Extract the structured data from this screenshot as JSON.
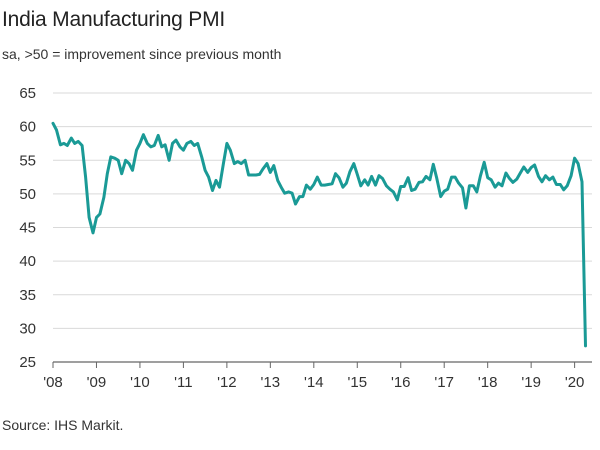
{
  "title": "India Manufacturing PMI",
  "subtitle": "sa, >50 = improvement since previous month",
  "source": "Source: IHS Markit.",
  "chart_data": {
    "type": "line",
    "title": "India Manufacturing PMI",
    "subtitle": "sa, >50 = improvement since previous month",
    "ylim": [
      25,
      65
    ],
    "yticks": [
      25,
      30,
      35,
      40,
      45,
      50,
      55,
      60,
      65
    ],
    "xlim": [
      2008.0,
      2020.4
    ],
    "xticks": [
      {
        "value": 2008,
        "label": "'08"
      },
      {
        "value": 2009,
        "label": "'09"
      },
      {
        "value": 2010,
        "label": "'10"
      },
      {
        "value": 2011,
        "label": "'11"
      },
      {
        "value": 2012,
        "label": "'12"
      },
      {
        "value": 2013,
        "label": "'13"
      },
      {
        "value": 2014,
        "label": "'14"
      },
      {
        "value": 2015,
        "label": "'15"
      },
      {
        "value": 2016,
        "label": "'16"
      },
      {
        "value": 2017,
        "label": "'17"
      },
      {
        "value": 2018,
        "label": "'18"
      },
      {
        "value": 2019,
        "label": "'19"
      },
      {
        "value": 2020,
        "label": "'20"
      }
    ],
    "grid": "horizontal",
    "line_color": "#1a9a96",
    "series": [
      {
        "points": [
          [
            2008.0,
            60.5
          ],
          [
            2008.08,
            59.5
          ],
          [
            2008.17,
            57.3
          ],
          [
            2008.25,
            57.5
          ],
          [
            2008.33,
            57.2
          ],
          [
            2008.42,
            58.3
          ],
          [
            2008.5,
            57.5
          ],
          [
            2008.58,
            57.8
          ],
          [
            2008.67,
            57.2
          ],
          [
            2008.75,
            52.5
          ],
          [
            2008.83,
            46.5
          ],
          [
            2008.92,
            44.2
          ],
          [
            2009.0,
            46.5
          ],
          [
            2009.08,
            47.0
          ],
          [
            2009.17,
            49.5
          ],
          [
            2009.25,
            53.0
          ],
          [
            2009.33,
            55.5
          ],
          [
            2009.42,
            55.3
          ],
          [
            2009.5,
            55.0
          ],
          [
            2009.58,
            53.0
          ],
          [
            2009.67,
            55.0
          ],
          [
            2009.75,
            54.5
          ],
          [
            2009.83,
            53.5
          ],
          [
            2009.92,
            56.5
          ],
          [
            2010.0,
            57.5
          ],
          [
            2010.08,
            58.8
          ],
          [
            2010.17,
            57.5
          ],
          [
            2010.25,
            57.0
          ],
          [
            2010.33,
            57.2
          ],
          [
            2010.42,
            58.7
          ],
          [
            2010.5,
            57.0
          ],
          [
            2010.58,
            57.3
          ],
          [
            2010.67,
            55.0
          ],
          [
            2010.75,
            57.5
          ],
          [
            2010.83,
            58.0
          ],
          [
            2010.92,
            57.0
          ],
          [
            2011.0,
            56.5
          ],
          [
            2011.08,
            57.5
          ],
          [
            2011.17,
            57.8
          ],
          [
            2011.25,
            57.2
          ],
          [
            2011.33,
            57.5
          ],
          [
            2011.42,
            55.5
          ],
          [
            2011.5,
            53.5
          ],
          [
            2011.58,
            52.5
          ],
          [
            2011.67,
            50.5
          ],
          [
            2011.75,
            52.0
          ],
          [
            2011.83,
            51.0
          ],
          [
            2011.92,
            54.5
          ],
          [
            2012.0,
            57.5
          ],
          [
            2012.08,
            56.5
          ],
          [
            2012.17,
            54.5
          ],
          [
            2012.25,
            54.8
          ],
          [
            2012.33,
            54.5
          ],
          [
            2012.42,
            55.0
          ],
          [
            2012.5,
            52.8
          ],
          [
            2012.58,
            52.8
          ],
          [
            2012.67,
            52.8
          ],
          [
            2012.75,
            52.9
          ],
          [
            2012.83,
            53.7
          ],
          [
            2012.92,
            54.5
          ],
          [
            2013.0,
            53.2
          ],
          [
            2013.08,
            54.2
          ],
          [
            2013.17,
            52.0
          ],
          [
            2013.25,
            51.0
          ],
          [
            2013.33,
            50.1
          ],
          [
            2013.42,
            50.3
          ],
          [
            2013.5,
            50.1
          ],
          [
            2013.58,
            48.5
          ],
          [
            2013.67,
            49.6
          ],
          [
            2013.75,
            49.6
          ],
          [
            2013.83,
            51.3
          ],
          [
            2013.92,
            50.7
          ],
          [
            2014.0,
            51.4
          ],
          [
            2014.08,
            52.5
          ],
          [
            2014.17,
            51.3
          ],
          [
            2014.25,
            51.3
          ],
          [
            2014.33,
            51.4
          ],
          [
            2014.42,
            51.5
          ],
          [
            2014.5,
            53.0
          ],
          [
            2014.58,
            52.4
          ],
          [
            2014.67,
            51.0
          ],
          [
            2014.75,
            51.6
          ],
          [
            2014.83,
            53.3
          ],
          [
            2014.92,
            54.5
          ],
          [
            2015.0,
            52.9
          ],
          [
            2015.08,
            51.2
          ],
          [
            2015.17,
            52.1
          ],
          [
            2015.25,
            51.3
          ],
          [
            2015.33,
            52.6
          ],
          [
            2015.42,
            51.3
          ],
          [
            2015.5,
            52.7
          ],
          [
            2015.58,
            52.3
          ],
          [
            2015.67,
            51.2
          ],
          [
            2015.75,
            50.7
          ],
          [
            2015.83,
            50.3
          ],
          [
            2015.92,
            49.1
          ],
          [
            2016.0,
            51.1
          ],
          [
            2016.08,
            51.1
          ],
          [
            2016.17,
            52.4
          ],
          [
            2016.25,
            50.5
          ],
          [
            2016.33,
            50.7
          ],
          [
            2016.42,
            51.7
          ],
          [
            2016.5,
            51.8
          ],
          [
            2016.58,
            52.6
          ],
          [
            2016.67,
            52.1
          ],
          [
            2016.75,
            54.4
          ],
          [
            2016.83,
            52.3
          ],
          [
            2016.92,
            49.6
          ],
          [
            2017.0,
            50.4
          ],
          [
            2017.08,
            50.7
          ],
          [
            2017.17,
            52.5
          ],
          [
            2017.25,
            52.5
          ],
          [
            2017.33,
            51.6
          ],
          [
            2017.42,
            50.9
          ],
          [
            2017.5,
            47.9
          ],
          [
            2017.58,
            51.2
          ],
          [
            2017.67,
            51.2
          ],
          [
            2017.75,
            50.3
          ],
          [
            2017.83,
            52.6
          ],
          [
            2017.92,
            54.7
          ],
          [
            2018.0,
            52.4
          ],
          [
            2018.08,
            52.1
          ],
          [
            2018.17,
            51.0
          ],
          [
            2018.25,
            51.6
          ],
          [
            2018.33,
            51.2
          ],
          [
            2018.42,
            53.1
          ],
          [
            2018.5,
            52.3
          ],
          [
            2018.58,
            51.7
          ],
          [
            2018.67,
            52.2
          ],
          [
            2018.75,
            53.1
          ],
          [
            2018.83,
            54.0
          ],
          [
            2018.92,
            53.2
          ],
          [
            2019.0,
            53.9
          ],
          [
            2019.08,
            54.3
          ],
          [
            2019.17,
            52.6
          ],
          [
            2019.25,
            51.8
          ],
          [
            2019.33,
            52.7
          ],
          [
            2019.42,
            52.1
          ],
          [
            2019.5,
            52.5
          ],
          [
            2019.58,
            51.4
          ],
          [
            2019.67,
            51.4
          ],
          [
            2019.75,
            50.6
          ],
          [
            2019.83,
            51.2
          ],
          [
            2019.92,
            52.7
          ],
          [
            2020.0,
            55.3
          ],
          [
            2020.08,
            54.5
          ],
          [
            2020.17,
            51.8
          ],
          [
            2020.25,
            27.4
          ]
        ]
      }
    ]
  }
}
